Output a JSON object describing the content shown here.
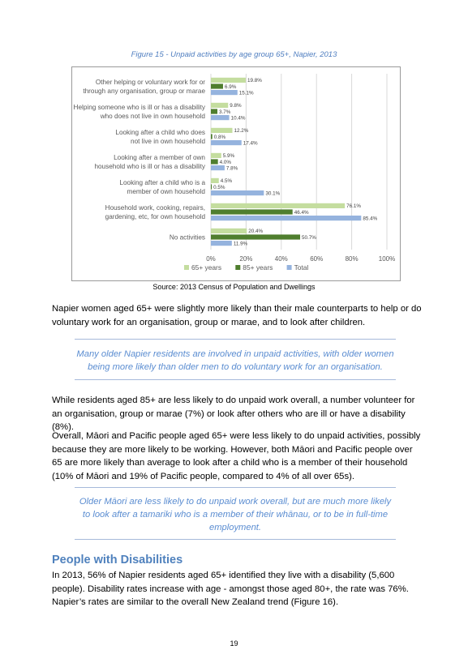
{
  "figure_title": "Figure 15 - Unpaid activities by age group 65+, Napier, 2013",
  "chart_data": {
    "type": "bar",
    "orientation": "horizontal",
    "categories": [
      [
        "Other helping or voluntary work for or",
        "through any organisation, group or marae"
      ],
      [
        "Helping someone who is ill or has a disability",
        "who does not live in own household"
      ],
      [
        "Looking after a child who does",
        "not live in own household"
      ],
      [
        "Looking after a member of own",
        "household who is ill or has a disability"
      ],
      [
        "Looking after a child who is a",
        "member of own household"
      ],
      [
        "Household work, cooking, repairs,",
        "gardening, etc, for own household"
      ],
      [
        "No activities"
      ]
    ],
    "series": [
      {
        "name": "65+ years",
        "color": "#c4dd9f",
        "values": [
          19.8,
          9.8,
          12.2,
          5.9,
          4.5,
          76.1,
          20.4
        ],
        "labels": [
          "19.8%",
          "9.8%",
          "12.2%",
          "5.9%",
          "4.5%",
          "76.1%",
          "20.4%"
        ]
      },
      {
        "name": "85+ years",
        "color": "#4f7e2e",
        "values": [
          6.9,
          3.7,
          0.8,
          4.0,
          0.5,
          46.4,
          50.7
        ],
        "labels": [
          "6.9%",
          "3.7%",
          "0.8%",
          "4.0%",
          "0.5%",
          "46.4%",
          "50.7%"
        ]
      },
      {
        "name": "Total",
        "color": "#95b3de",
        "values": [
          15.1,
          10.4,
          17.4,
          7.8,
          30.1,
          85.4,
          11.9
        ],
        "labels": [
          "15.1%",
          "10.4%",
          "17.4%",
          "7.8%",
          "30.1%",
          "85.4%",
          "11.9%"
        ]
      }
    ],
    "xlim": [
      0,
      100
    ],
    "x_ticks": [
      "0%",
      "20%",
      "40%",
      "60%",
      "80%",
      "100%"
    ],
    "legend_position": "bottom",
    "grid": true
  },
  "source": "Source: 2013 Census of Population and Dwellings",
  "para1": "Napier women aged 65+ were slightly more likely than their male counterparts to help or do voluntary work for an organisation, group or marae, and to look after children.",
  "quote1": "Many older Napier residents are involved in unpaid activities, with older women being more likely than older men to do voluntary work for an organisation.",
  "para2": "While residents aged 85+ are less likely to do unpaid work overall, a number volunteer for an organisation, group or marae (7%) or look after others who are ill or have a disability (8%).",
  "para3": "Overall, Māori and Pacific people aged 65+ were less likely to do unpaid activities, possibly because they are more likely to be working. However, both Māori and Pacific people over 65 are more likely than average to look after a child who is a member of their household (10% of Māori and 19% of Pacific people, compared to 4% of all over 65s).",
  "quote2": "Older Māori are less likely to do unpaid work overall, but are much more likely to look after a tamariki who is a member of their whānau, or to be in full-time employment.",
  "heading": "People with Disabilities",
  "para4": "In 2013, 56% of Napier residents aged 65+ identified they live with a disability (5,600 people). Disability rates increase with age - amongst those aged 80+, the rate was 76%. Napier’s rates are similar to the overall New Zealand trend (Figure 16).",
  "page_number": "19"
}
